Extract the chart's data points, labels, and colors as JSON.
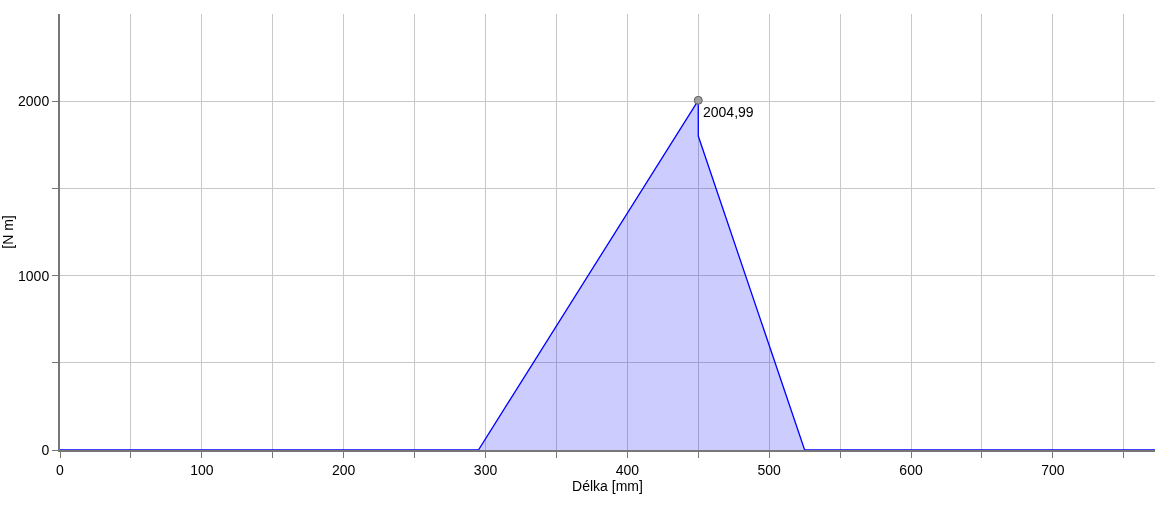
{
  "chart_data": {
    "type": "area",
    "xlabel": "Délka [mm]",
    "ylabel": "[N m]",
    "series": [
      {
        "color": "#0000ff",
        "x": [
          0,
          295,
          450,
          450,
          525,
          772
        ],
        "values": [
          0,
          0,
          2004.99,
          1800,
          0,
          0
        ]
      }
    ],
    "annotations": [
      {
        "text": "2004,99",
        "x": 450,
        "y": 2004.99
      }
    ],
    "xlim": [
      0,
      772
    ],
    "ylim": [
      0,
      2500
    ],
    "xticks": [
      0,
      {
        "value": 50,
        "label": null
      },
      100,
      {
        "value": 150,
        "label": null
      },
      200,
      {
        "value": 250,
        "label": null
      },
      300,
      {
        "value": 350,
        "label": null
      },
      400,
      {
        "value": 450,
        "label": null
      },
      500,
      {
        "value": 550,
        "label": null
      },
      600,
      {
        "value": 650,
        "label": null
      },
      700,
      {
        "value": 750,
        "label": null
      }
    ],
    "yticks": [
      0,
      {
        "value": 500,
        "label": null
      },
      1000,
      {
        "value": 1500,
        "label": null
      },
      2000
    ],
    "grid": true,
    "marker": "none"
  }
}
